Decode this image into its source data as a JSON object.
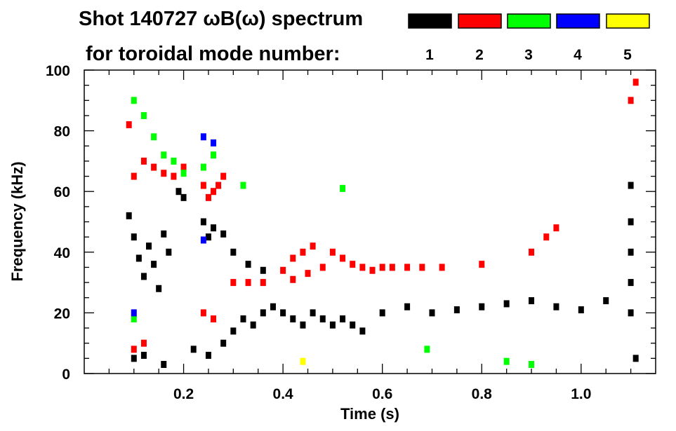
{
  "chart_data": {
    "type": "scatter",
    "title": "Shot 140727 ωB(ω) spectrum",
    "subtitle": "for toroidal mode number:",
    "xlabel": "Time (s)",
    "ylabel": "Frequency (kHz)",
    "xlim": [
      0.0,
      1.15
    ],
    "ylim": [
      0,
      100
    ],
    "x_ticks": [
      0.2,
      0.4,
      0.6,
      0.8,
      1.0
    ],
    "x_tick_labels": [
      "0.2",
      "0.4",
      "0.6",
      "0.8",
      "1.0"
    ],
    "y_ticks": [
      0,
      20,
      40,
      60,
      80,
      100
    ],
    "y_tick_labels": [
      "0",
      "20",
      "40",
      "60",
      "80",
      "100"
    ],
    "grid": false,
    "legend_position": "top-right",
    "series": [
      {
        "name": "1",
        "color": "#000000",
        "points": [
          [
            0.09,
            52
          ],
          [
            0.1,
            45
          ],
          [
            0.11,
            38
          ],
          [
            0.12,
            32
          ],
          [
            0.13,
            42
          ],
          [
            0.14,
            36
          ],
          [
            0.15,
            28
          ],
          [
            0.16,
            46
          ],
          [
            0.17,
            40
          ],
          [
            0.19,
            60
          ],
          [
            0.2,
            58
          ],
          [
            0.24,
            50
          ],
          [
            0.25,
            45
          ],
          [
            0.26,
            48
          ],
          [
            0.28,
            46
          ],
          [
            0.3,
            40
          ],
          [
            0.33,
            36
          ],
          [
            0.36,
            34
          ],
          [
            0.22,
            8
          ],
          [
            0.25,
            6
          ],
          [
            0.28,
            10
          ],
          [
            0.3,
            14
          ],
          [
            0.32,
            18
          ],
          [
            0.34,
            16
          ],
          [
            0.36,
            20
          ],
          [
            0.38,
            22
          ],
          [
            0.4,
            20
          ],
          [
            0.42,
            18
          ],
          [
            0.44,
            16
          ],
          [
            0.46,
            20
          ],
          [
            0.48,
            18
          ],
          [
            0.5,
            16
          ],
          [
            0.52,
            18
          ],
          [
            0.54,
            16
          ],
          [
            0.56,
            14
          ],
          [
            0.6,
            20
          ],
          [
            0.65,
            22
          ],
          [
            0.7,
            20
          ],
          [
            0.75,
            21
          ],
          [
            0.8,
            22
          ],
          [
            0.85,
            23
          ],
          [
            0.9,
            24
          ],
          [
            0.95,
            22
          ],
          [
            1.0,
            21
          ],
          [
            1.05,
            24
          ],
          [
            1.1,
            62
          ],
          [
            1.1,
            50
          ],
          [
            1.1,
            40
          ],
          [
            1.1,
            30
          ],
          [
            1.1,
            20
          ],
          [
            1.11,
            5
          ],
          [
            0.1,
            5
          ],
          [
            0.12,
            6
          ],
          [
            0.16,
            3
          ]
        ]
      },
      {
        "name": "2",
        "color": "#ff0000",
        "points": [
          [
            0.09,
            82
          ],
          [
            0.1,
            65
          ],
          [
            0.12,
            70
          ],
          [
            0.14,
            68
          ],
          [
            0.16,
            66
          ],
          [
            0.18,
            65
          ],
          [
            0.2,
            68
          ],
          [
            0.24,
            62
          ],
          [
            0.25,
            58
          ],
          [
            0.26,
            60
          ],
          [
            0.27,
            62
          ],
          [
            0.28,
            65
          ],
          [
            0.1,
            8
          ],
          [
            0.12,
            10
          ],
          [
            0.24,
            20
          ],
          [
            0.26,
            18
          ],
          [
            0.3,
            30
          ],
          [
            0.33,
            30
          ],
          [
            0.36,
            30
          ],
          [
            0.4,
            34
          ],
          [
            0.42,
            38
          ],
          [
            0.44,
            40
          ],
          [
            0.46,
            42
          ],
          [
            0.5,
            40
          ],
          [
            0.52,
            38
          ],
          [
            0.54,
            36
          ],
          [
            0.56,
            35
          ],
          [
            0.58,
            34
          ],
          [
            0.6,
            35
          ],
          [
            0.62,
            35
          ],
          [
            0.65,
            35
          ],
          [
            0.68,
            35
          ],
          [
            0.42,
            31
          ],
          [
            0.45,
            33
          ],
          [
            0.48,
            35
          ],
          [
            0.72,
            35
          ],
          [
            0.8,
            36
          ],
          [
            0.9,
            40
          ],
          [
            0.93,
            45
          ],
          [
            0.95,
            48
          ],
          [
            1.1,
            90
          ],
          [
            1.11,
            96
          ]
        ]
      },
      {
        "name": "3",
        "color": "#00ff00",
        "points": [
          [
            0.1,
            90
          ],
          [
            0.12,
            85
          ],
          [
            0.14,
            78
          ],
          [
            0.16,
            72
          ],
          [
            0.18,
            70
          ],
          [
            0.2,
            66
          ],
          [
            0.24,
            68
          ],
          [
            0.26,
            72
          ],
          [
            0.1,
            18
          ],
          [
            0.32,
            62
          ],
          [
            0.52,
            61
          ],
          [
            0.69,
            8
          ],
          [
            0.85,
            4
          ],
          [
            0.9,
            3
          ]
        ]
      },
      {
        "name": "4",
        "color": "#0000ff",
        "points": [
          [
            0.24,
            78
          ],
          [
            0.26,
            76
          ],
          [
            0.1,
            20
          ],
          [
            0.24,
            44
          ]
        ]
      },
      {
        "name": "5",
        "color": "#ffff00",
        "points": [
          [
            0.44,
            4
          ]
        ]
      }
    ]
  }
}
